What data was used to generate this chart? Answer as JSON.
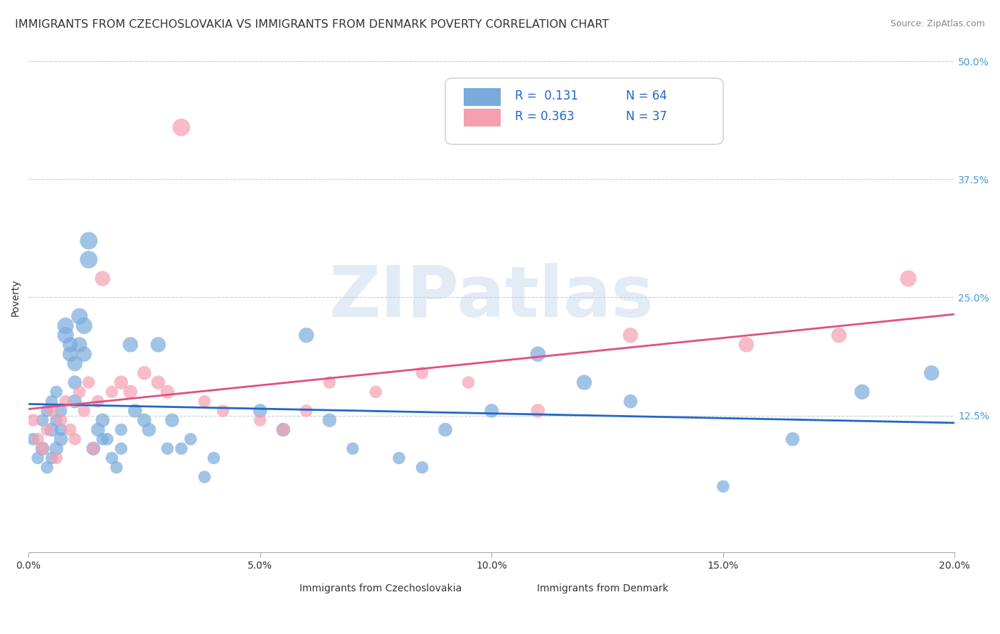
{
  "title": "IMMIGRANTS FROM CZECHOSLOVAKIA VS IMMIGRANTS FROM DENMARK POVERTY CORRELATION CHART",
  "source": "Source: ZipAtlas.com",
  "xlabel": "",
  "ylabel": "Poverty",
  "xlim": [
    0.0,
    0.2
  ],
  "ylim": [
    -0.02,
    0.52
  ],
  "xtick_labels": [
    "0.0%",
    "5.0%",
    "10.0%",
    "15.0%",
    "20.0%"
  ],
  "xtick_vals": [
    0.0,
    0.05,
    0.1,
    0.15,
    0.2
  ],
  "ytick_labels_right": [
    "12.5%",
    "25.0%",
    "37.5%",
    "50.0%"
  ],
  "ytick_vals_right": [
    0.125,
    0.25,
    0.375,
    0.5
  ],
  "color_czechoslovakia": "#7aabdc",
  "color_denmark": "#f4a0b0",
  "trendline_color_czechoslovakia": "#2266cc",
  "trendline_color_denmark": "#e05080",
  "R_czechoslovakia": 0.131,
  "N_czechoslovakia": 64,
  "R_denmark": 0.363,
  "N_denmark": 37,
  "legend_label_czechoslovakia": "Immigrants from Czechoslovakia",
  "legend_label_denmark": "Immigrants from Denmark",
  "watermark": "ZIPatlas",
  "watermark_color": "#c8d8ec",
  "title_fontsize": 11.5,
  "axis_label_fontsize": 10,
  "tick_fontsize": 10,
  "background_color": "#ffffff",
  "grid_color": "#cccccc",
  "scatter_czechoslovakia_x": [
    0.001,
    0.002,
    0.003,
    0.003,
    0.004,
    0.004,
    0.005,
    0.005,
    0.005,
    0.006,
    0.006,
    0.006,
    0.007,
    0.007,
    0.007,
    0.008,
    0.008,
    0.009,
    0.009,
    0.01,
    0.01,
    0.01,
    0.011,
    0.011,
    0.012,
    0.012,
    0.013,
    0.013,
    0.014,
    0.015,
    0.016,
    0.016,
    0.017,
    0.018,
    0.019,
    0.02,
    0.02,
    0.022,
    0.023,
    0.025,
    0.026,
    0.028,
    0.03,
    0.031,
    0.033,
    0.035,
    0.038,
    0.04,
    0.05,
    0.055,
    0.06,
    0.065,
    0.07,
    0.08,
    0.085,
    0.09,
    0.1,
    0.11,
    0.12,
    0.13,
    0.15,
    0.165,
    0.18,
    0.195
  ],
  "scatter_czechoslovakia_y": [
    0.1,
    0.08,
    0.12,
    0.09,
    0.13,
    0.07,
    0.11,
    0.14,
    0.08,
    0.09,
    0.12,
    0.15,
    0.1,
    0.13,
    0.11,
    0.22,
    0.21,
    0.19,
    0.2,
    0.18,
    0.16,
    0.14,
    0.23,
    0.2,
    0.22,
    0.19,
    0.29,
    0.31,
    0.09,
    0.11,
    0.1,
    0.12,
    0.1,
    0.08,
    0.07,
    0.09,
    0.11,
    0.2,
    0.13,
    0.12,
    0.11,
    0.2,
    0.09,
    0.12,
    0.09,
    0.1,
    0.06,
    0.08,
    0.13,
    0.11,
    0.21,
    0.12,
    0.09,
    0.08,
    0.07,
    0.11,
    0.13,
    0.19,
    0.16,
    0.14,
    0.05,
    0.1,
    0.15,
    0.17
  ],
  "scatter_czechoslovakia_size": [
    20,
    20,
    20,
    25,
    20,
    20,
    25,
    20,
    20,
    25,
    20,
    20,
    25,
    20,
    20,
    35,
    35,
    30,
    30,
    30,
    25,
    25,
    35,
    30,
    35,
    30,
    40,
    40,
    25,
    25,
    20,
    25,
    20,
    20,
    20,
    20,
    20,
    30,
    25,
    25,
    25,
    30,
    20,
    25,
    20,
    20,
    20,
    20,
    25,
    25,
    30,
    25,
    20,
    20,
    20,
    25,
    25,
    30,
    30,
    25,
    20,
    25,
    30,
    30
  ],
  "scatter_denmark_x": [
    0.001,
    0.002,
    0.003,
    0.004,
    0.005,
    0.006,
    0.007,
    0.008,
    0.009,
    0.01,
    0.011,
    0.012,
    0.013,
    0.014,
    0.015,
    0.016,
    0.018,
    0.02,
    0.022,
    0.025,
    0.028,
    0.03,
    0.033,
    0.038,
    0.042,
    0.05,
    0.055,
    0.06,
    0.065,
    0.075,
    0.085,
    0.095,
    0.11,
    0.13,
    0.155,
    0.175,
    0.19
  ],
  "scatter_denmark_y": [
    0.12,
    0.1,
    0.09,
    0.11,
    0.13,
    0.08,
    0.12,
    0.14,
    0.11,
    0.1,
    0.15,
    0.13,
    0.16,
    0.09,
    0.14,
    0.27,
    0.15,
    0.16,
    0.15,
    0.17,
    0.16,
    0.15,
    0.43,
    0.14,
    0.13,
    0.12,
    0.11,
    0.13,
    0.16,
    0.15,
    0.17,
    0.16,
    0.13,
    0.21,
    0.2,
    0.21,
    0.27
  ],
  "scatter_denmark_size": [
    20,
    20,
    20,
    20,
    20,
    20,
    20,
    20,
    20,
    20,
    20,
    20,
    20,
    20,
    20,
    30,
    20,
    25,
    25,
    25,
    25,
    25,
    40,
    20,
    20,
    20,
    20,
    20,
    20,
    20,
    20,
    20,
    25,
    30,
    30,
    30,
    35
  ]
}
